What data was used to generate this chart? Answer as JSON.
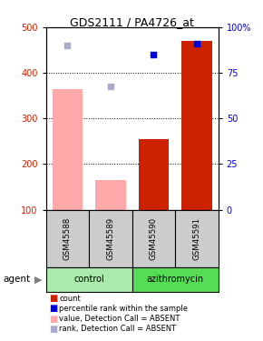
{
  "title": "GDS2111 / PA4726_at",
  "samples": [
    "GSM45588",
    "GSM45589",
    "GSM45590",
    "GSM45591"
  ],
  "bar_values_red": [
    null,
    null,
    255,
    470
  ],
  "bar_values_pink": [
    365,
    165,
    null,
    null
  ],
  "scatter_blue": [
    null,
    null,
    440,
    465
  ],
  "scatter_lightblue": [
    460,
    370,
    null,
    null
  ],
  "ylim_left": [
    100,
    500
  ],
  "ylim_right": [
    0,
    100
  ],
  "yticks_left": [
    100,
    200,
    300,
    400,
    500
  ],
  "yticks_right": [
    0,
    25,
    50,
    75,
    100
  ],
  "ytick_labels_right": [
    "0",
    "25",
    "50",
    "75",
    "100%"
  ],
  "color_red": "#cc2200",
  "color_blue": "#0000cc",
  "color_pink": "#ffaaaa",
  "color_lightblue": "#aaaacc",
  "color_control_bg": "#aaeaaa",
  "color_azithromycin_bg": "#55dd55",
  "color_sample_bg": "#cccccc",
  "legend_items": [
    {
      "label": "count",
      "color": "#cc2200"
    },
    {
      "label": "percentile rank within the sample",
      "color": "#0000cc"
    },
    {
      "label": "value, Detection Call = ABSENT",
      "color": "#ffaaaa"
    },
    {
      "label": "rank, Detection Call = ABSENT",
      "color": "#aaaacc"
    }
  ],
  "bar_width": 0.7,
  "dotted_yticks": [
    200,
    300,
    400
  ]
}
